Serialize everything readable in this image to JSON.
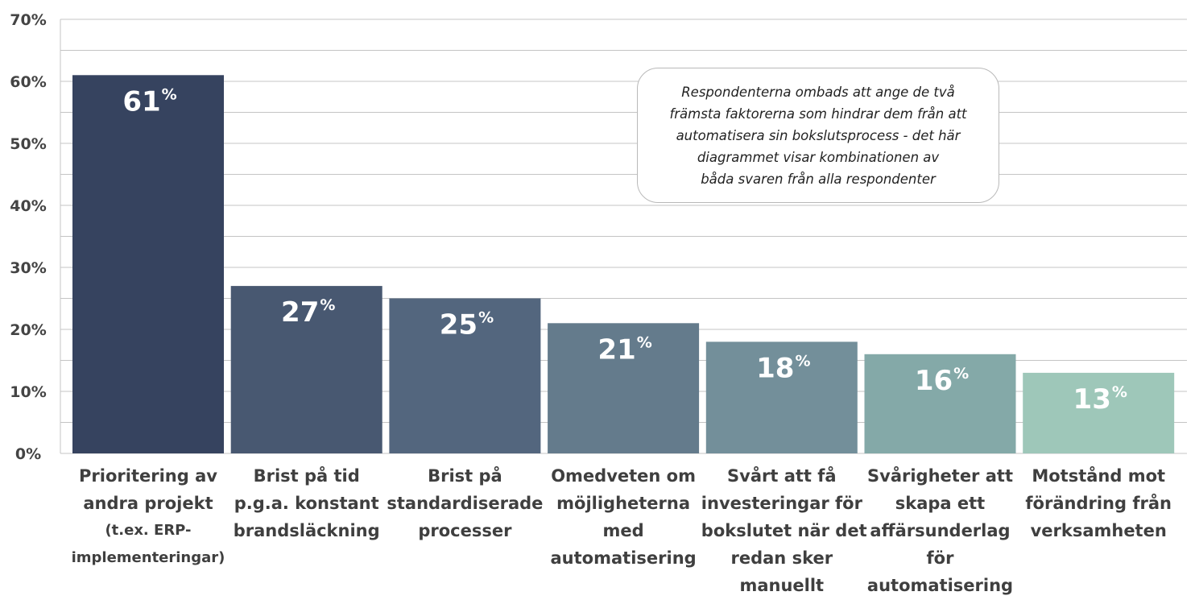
{
  "chart_data": {
    "type": "bar",
    "categories": [
      "Prioritering av andra projekt (t.ex. ERP-implementeringar)",
      "Brist på tid p.g.a. konstant brandsläckning",
      "Brist på standardiserade processer",
      "Omedveten om möjligheterna med automatisering",
      "Svårt att få investeringar för bokslutet när det redan sker manuellt",
      "Svårigheter att skapa ett affärsunderlag för automatisering",
      "Motstånd mot förändring från verksamheten"
    ],
    "category_lines": [
      [
        "Prioritering av",
        "andra projekt",
        "(t.ex. ERP-",
        "implementeringar)"
      ],
      [
        "Brist på tid",
        "p.g.a. konstant",
        "brandsläckning"
      ],
      [
        "Brist på",
        "standardiserade",
        "processer"
      ],
      [
        "Omedveten om",
        "möjligheterna",
        "med",
        "automatisering"
      ],
      [
        "Svårt att få",
        "investeringar för",
        "bokslutet när det",
        "redan sker",
        "manuellt"
      ],
      [
        "Svårigheter att",
        "skapa ett",
        "affärsunderlag",
        "för",
        "automatisering"
      ],
      [
        "Motstånd mot",
        "förändring från",
        "verksamheten"
      ]
    ],
    "values": [
      61,
      27,
      25,
      21,
      18,
      16,
      13
    ],
    "value_labels": [
      "61",
      "27",
      "25",
      "21",
      "18",
      "16",
      "13"
    ],
    "value_suffix": "%",
    "y_ticks": [
      "0%",
      "10%",
      "20%",
      "30%",
      "40%",
      "50%",
      "60%",
      "70%"
    ],
    "ylim": [
      0,
      70
    ],
    "grid": true,
    "grid_step": 5,
    "colors": [
      "#36435f",
      "#485871",
      "#53667e",
      "#647b8c",
      "#738f9a",
      "#84a9a8",
      "#9ec7b9"
    ],
    "annotation": [
      "Respondenterna ombads att ange de två",
      "främsta faktorerna som hindrar dem från att",
      "automatisera sin bokslutsprocess - det här",
      "diagrammet visar kombinationen av",
      "båda svaren från alla respondenter"
    ],
    "title": "",
    "xlabel": "",
    "ylabel": ""
  }
}
